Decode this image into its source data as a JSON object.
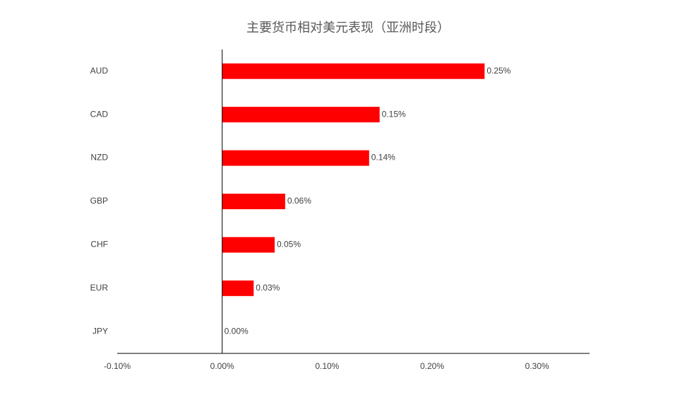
{
  "chart_data": {
    "type": "hbar",
    "title": "主要货币相对美元表现（亚洲时段）",
    "categories": [
      "AUD",
      "CAD",
      "NZD",
      "GBP",
      "CHF",
      "EUR",
      "JPY"
    ],
    "values": [
      0.25,
      0.15,
      0.14,
      0.06,
      0.05,
      0.03,
      0.0
    ],
    "value_labels": [
      "0.25%",
      "0.15%",
      "0.14%",
      "0.06%",
      "0.05%",
      "0.03%",
      "0.00%"
    ],
    "color": "#ff0000",
    "xlim": [
      -0.1,
      0.35
    ],
    "xticks": [
      {
        "value": -0.1,
        "label": "-0.10%"
      },
      {
        "value": 0,
        "label": "0.00%"
      },
      {
        "value": 0.1,
        "label": "0.10%"
      },
      {
        "value": 0.2,
        "label": "0.20%"
      },
      {
        "value": 0.3,
        "label": "0.30%"
      }
    ],
    "grid": false
  }
}
